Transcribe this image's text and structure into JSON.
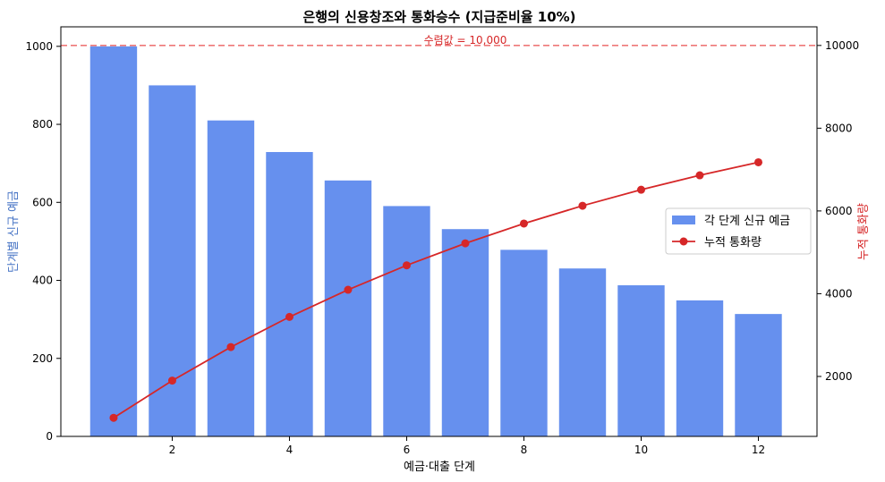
{
  "chart_data": {
    "type": "bar",
    "title": "은행의 신용창조와 통화승수 (지급준비율 10%)",
    "xlabel": "예금·대출 단계",
    "ylabel_left": "단계별 신규 예금",
    "ylabel_right": "누적 통화량",
    "x": [
      1,
      2,
      3,
      4,
      5,
      6,
      7,
      8,
      9,
      10,
      11,
      12
    ],
    "x_ticks": [
      2,
      4,
      6,
      8,
      10,
      12
    ],
    "xlim": [
      0.1,
      13.0
    ],
    "ylim_left": [
      0,
      1050
    ],
    "ylim_right": [
      551,
      10450
    ],
    "y_ticks_left": [
      0,
      200,
      400,
      600,
      800,
      1000
    ],
    "y_ticks_right": [
      2000,
      4000,
      6000,
      8000,
      10000
    ],
    "series": [
      {
        "name": "각 단계 신규 예금",
        "type": "bar",
        "axis": "left",
        "color": "#6690ee",
        "values": [
          1000,
          900,
          810,
          729,
          656.1,
          590.5,
          531.4,
          478.3,
          430.5,
          387.4,
          348.7,
          313.8
        ]
      },
      {
        "name": "누적 통화량",
        "type": "line",
        "axis": "right",
        "color": "#d62728",
        "values": [
          1000,
          1900,
          2710,
          3439,
          4095.1,
          4685.6,
          5217.0,
          5695.3,
          6125.8,
          6513.2,
          6861.9,
          7175.7
        ]
      }
    ],
    "reference_line": {
      "axis": "right",
      "value": 10000,
      "label": "수렴값 = 10,000",
      "color": "#ee7777"
    },
    "legend_position": "center-right",
    "grid": false
  }
}
